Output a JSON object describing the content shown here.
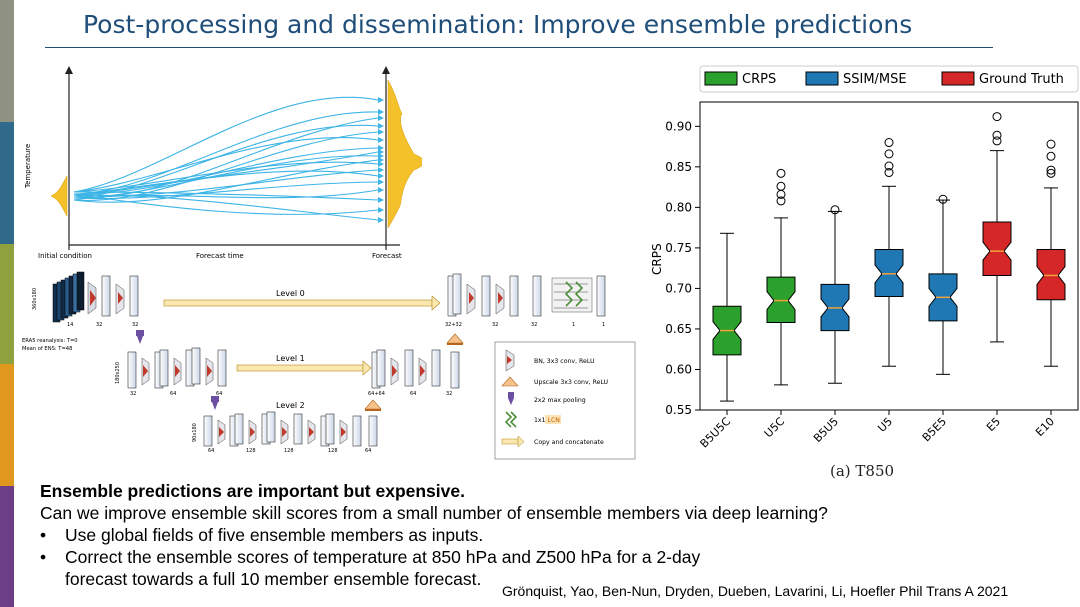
{
  "slide": {
    "title": "Post-processing and dissemination: Improve ensemble predictions",
    "sidebar_colors": [
      "#8f9183",
      "#2f6a8a",
      "#8fa03e",
      "#e0971e",
      "#6b3e87"
    ]
  },
  "trajectory_figure": {
    "y_label": "Temperature",
    "x_start_label": "Initial condition",
    "x_mid_label": "Forecast time",
    "x_end_label": "Forecast",
    "line_color": "#3db4e6",
    "pdf_color": "#f5c12a"
  },
  "unet_figure": {
    "level0_label": "Level 0",
    "level1_label": "Level 1",
    "level2_label": "Level 2",
    "input_lines": [
      "ERA5 reanalysis: T=0",
      "Mean of ENS: T=48"
    ],
    "side_dim_0": "360x180",
    "side_dim_1": "180x250",
    "side_dim_2": "90x180",
    "ch_14": "14",
    "ch_32": "32",
    "ch_64": "64",
    "ch_128": "128",
    "ch_32_32": "32+32",
    "ch_64_64": "64+64",
    "ch_1": "1",
    "legend": {
      "conv": "BN, 3x3 conv, ReLU",
      "upscale": "Upscale 3x3 conv, ReLU",
      "pool": "2x2 max pooling",
      "lcn_prefix": "1x1 ",
      "lcn_highlight": "LCN",
      "concat": "Copy and concatenate"
    }
  },
  "chart_data": {
    "type": "boxplot",
    "ylabel": "CRPS",
    "ylim": [
      0.55,
      0.93
    ],
    "yticks": [
      "0.55",
      "0.60",
      "0.65",
      "0.70",
      "0.75",
      "0.80",
      "0.85",
      "0.90"
    ],
    "ytick_values": [
      0.55,
      0.6,
      0.65,
      0.7,
      0.75,
      0.8,
      0.85,
      0.9
    ],
    "categories": [
      "B5U5C",
      "U5C",
      "B5U5",
      "U5",
      "B5E5",
      "E5",
      "E10"
    ],
    "legend": [
      {
        "name": "CRPS",
        "color": "#2ca02c"
      },
      {
        "name": "SSIM/MSE",
        "color": "#1f77b4"
      },
      {
        "name": "Ground Truth",
        "color": "#d62728"
      }
    ],
    "boxes": [
      {
        "label": "B5U5C",
        "group": "CRPS",
        "whisker_low": 0.561,
        "q1": 0.618,
        "median": 0.648,
        "q3": 0.678,
        "whisker_high": 0.768,
        "outliers": []
      },
      {
        "label": "U5C",
        "group": "CRPS",
        "whisker_low": 0.581,
        "q1": 0.658,
        "median": 0.685,
        "q3": 0.714,
        "whisker_high": 0.787,
        "outliers": [
          0.808,
          0.816,
          0.826,
          0.842
        ]
      },
      {
        "label": "B5U5",
        "group": "SSIM/MSE",
        "whisker_low": 0.583,
        "q1": 0.648,
        "median": 0.676,
        "q3": 0.705,
        "whisker_high": 0.795,
        "outliers": [
          0.797
        ]
      },
      {
        "label": "U5",
        "group": "SSIM/MSE",
        "whisker_low": 0.604,
        "q1": 0.69,
        "median": 0.718,
        "q3": 0.748,
        "whisker_high": 0.826,
        "outliers": [
          0.843,
          0.851,
          0.866,
          0.88
        ]
      },
      {
        "label": "B5E5",
        "group": "SSIM/MSE",
        "whisker_low": 0.594,
        "q1": 0.66,
        "median": 0.689,
        "q3": 0.718,
        "whisker_high": 0.809,
        "outliers": [
          0.81
        ]
      },
      {
        "label": "E5",
        "group": "Ground Truth",
        "whisker_low": 0.634,
        "q1": 0.716,
        "median": 0.746,
        "q3": 0.782,
        "whisker_high": 0.87,
        "outliers": [
          0.882,
          0.889,
          0.912
        ]
      },
      {
        "label": "E10",
        "group": "Ground Truth",
        "whisker_low": 0.604,
        "q1": 0.686,
        "median": 0.716,
        "q3": 0.748,
        "whisker_high": 0.824,
        "outliers": [
          0.842,
          0.846,
          0.863,
          0.878
        ]
      }
    ],
    "caption": "(a) T850"
  },
  "body": {
    "heading": "Ensemble predictions are important but expensive.",
    "question": "Can we improve ensemble skill scores from a small number of ensemble members via deep learning?",
    "bullet_char": "•",
    "bullets": [
      "Use global fields of five ensemble members as inputs.",
      "Correct the ensemble scores of temperature at 850 hPa and Z500 hPa for a 2-day forecast towards a full 10 member ensemble forecast."
    ],
    "citation": "Grönquist, Yao, Ben-Nun, Dryden, Dueben, Lavarini,  Li, Hoefler Phil Trans A 2021"
  }
}
